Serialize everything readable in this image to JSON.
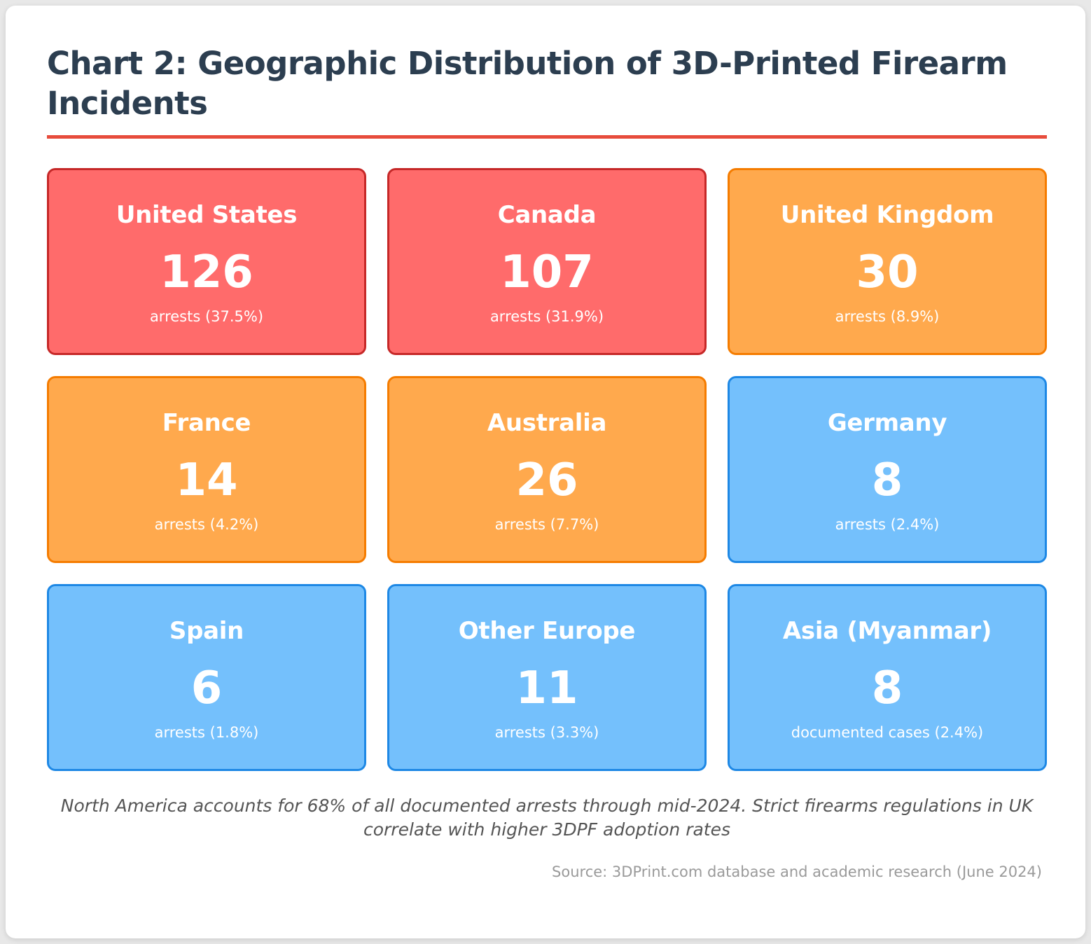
{
  "title": "Chart 2: Geographic Distribution of 3D-Printed Firearm Incidents",
  "colors": {
    "high": "#ff6b6b",
    "mid": "#ffa94d",
    "low": "#74c0fc",
    "accent_rule": "#e74c3c"
  },
  "chart_data": {
    "type": "table",
    "title": "Chart 2: Geographic Distribution of 3D-Printed Firearm Incidents",
    "regions": [
      {
        "name": "United States",
        "count": "126",
        "detail": "arrests (37.5%)",
        "tier": "high"
      },
      {
        "name": "Canada",
        "count": "107",
        "detail": "arrests (31.9%)",
        "tier": "high"
      },
      {
        "name": "United Kingdom",
        "count": "30",
        "detail": "arrests (8.9%)",
        "tier": "mid"
      },
      {
        "name": "France",
        "count": "14",
        "detail": "arrests (4.2%)",
        "tier": "mid"
      },
      {
        "name": "Australia",
        "count": "26",
        "detail": "arrests (7.7%)",
        "tier": "mid"
      },
      {
        "name": "Germany",
        "count": "8",
        "detail": "arrests (2.4%)",
        "tier": "low"
      },
      {
        "name": "Spain",
        "count": "6",
        "detail": "arrests (1.8%)",
        "tier": "low"
      },
      {
        "name": "Other Europe",
        "count": "11",
        "detail": "arrests (3.3%)",
        "tier": "low"
      },
      {
        "name": "Asia (Myanmar)",
        "count": "8",
        "detail": "documented cases (2.4%)",
        "tier": "low"
      }
    ]
  },
  "note": "North America accounts for 68% of all documented arrests through mid-2024. Strict firearms regulations in UK correlate with higher 3DPF adoption rates",
  "source": "Source: 3DPrint.com database and academic research (June 2024)"
}
